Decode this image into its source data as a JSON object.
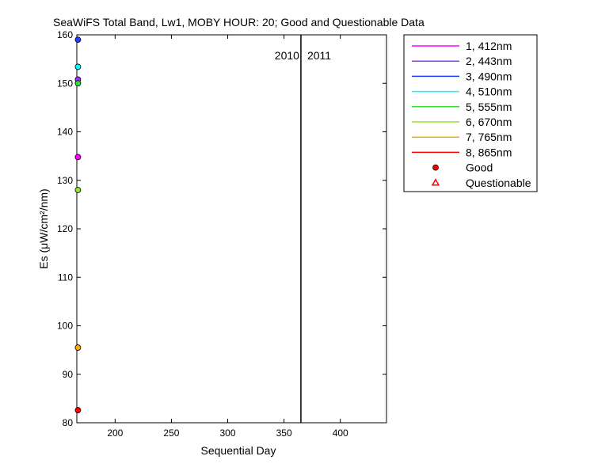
{
  "chart_data": {
    "type": "scatter",
    "title": "SeaWiFS Total Band,  Lw1, MOBY HOUR: 20;  Good and Questionable Data",
    "xlabel": "Sequential Day",
    "ylabel": "Es (μW/cm²/nm)",
    "xlim": [
      166,
      441
    ],
    "ylim": [
      80,
      160
    ],
    "xticks": [
      200,
      250,
      300,
      350,
      400
    ],
    "yticks": [
      80,
      90,
      100,
      110,
      120,
      130,
      140,
      150,
      160
    ],
    "grid": false,
    "legend_position": "outside-right",
    "year_divider": {
      "x": 365,
      "left_label": "2010",
      "right_label": "2011"
    },
    "series": [
      {
        "name": "1, 412nm",
        "color": "#ff00ff",
        "points": [
          {
            "x": 167,
            "y": 134.8
          }
        ]
      },
      {
        "name": "2, 443nm",
        "color": "#9b30ff",
        "points": [
          {
            "x": 167,
            "y": 150.8
          }
        ]
      },
      {
        "name": "3, 490nm",
        "color": "#1f3fff",
        "points": [
          {
            "x": 167,
            "y": 159
          }
        ]
      },
      {
        "name": "4, 510nm",
        "color": "#00ffff",
        "points": [
          {
            "x": 167,
            "y": 153.4
          }
        ]
      },
      {
        "name": "5, 555nm",
        "color": "#33dd33",
        "points": [
          {
            "x": 167,
            "y": 150
          }
        ]
      },
      {
        "name": "6, 670nm",
        "color": "#99dd33",
        "points": [
          {
            "x": 167,
            "y": 128
          }
        ]
      },
      {
        "name": "7, 765nm",
        "color": "#ffaa00",
        "points": [
          {
            "x": 167,
            "y": 95.5
          }
        ]
      },
      {
        "name": "8, 865nm",
        "color": "#ff0000",
        "points": [
          {
            "x": 167,
            "y": 82.6
          }
        ]
      }
    ],
    "marker_legend": [
      {
        "label": "Good",
        "marker": "circle",
        "color": "#ff0000"
      },
      {
        "label": "Questionable",
        "marker": "triangle",
        "color": "#ff0000"
      }
    ]
  }
}
